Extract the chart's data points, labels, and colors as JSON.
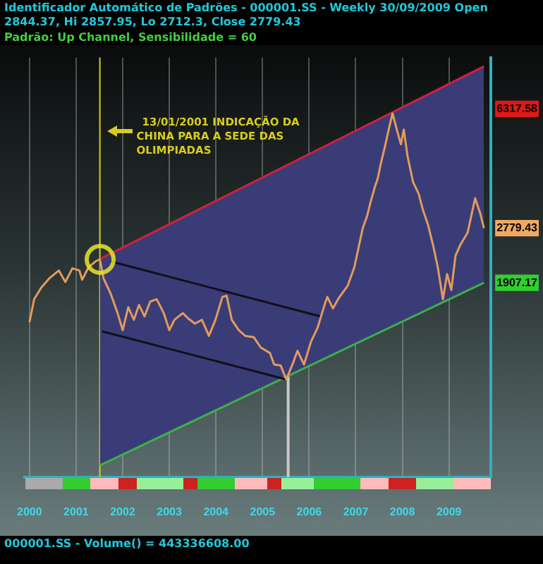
{
  "chart_data": {
    "type": "line",
    "title": "Identificador Automático de Padrões  - 000001.SS - Weekly 30/09/2009 Open 2844.37, Hi 2857.95, Lo 2712.3, Close 2779.43",
    "subtitle": "Padrão: Up Channel, Sensibilidade = 60",
    "annotations": [
      "000001.SS - Volume() = 443336608.00"
    ],
    "log": "y",
    "grid": "x",
    "xlim": [
      1999.9,
      2009.9
    ],
    "xticks": [
      2000,
      2001,
      2002,
      2003,
      2004,
      2005,
      2006,
      2007,
      2008,
      2009
    ],
    "ylim": [
      500,
      9000
    ],
    "yticks": [
      1907.17,
      2779.43,
      6317.58
    ],
    "ref_lines": [
      {
        "axis": "x",
        "value": 2001.51,
        "label": "13/01/2001 INDICAÇÃO DA CHINA PARA A SEDE DAS OLIMPIADAS",
        "color": "#d8cc20"
      },
      {
        "axis": "x",
        "value": 2005.55,
        "color": "#c8c8c8"
      }
    ],
    "series": [
      {
        "type": "area",
        "color": "#3a3c78",
        "x": [
          2001.51,
          2009.75
        ],
        "values": [
          2246,
          8466
        ]
      },
      {
        "type": "line",
        "color": "#3cb04a",
        "x": [
          2001.51,
          2009.75
        ],
        "values": [
          542,
          1907.17
        ]
      },
      {
        "type": "line",
        "color": "#d0203a",
        "x": [
          2001.51,
          2009.75
        ],
        "values": [
          2246,
          8466
        ]
      },
      {
        "type": "line",
        "color": "#101018",
        "x": [
          2001.74,
          2006.24
        ],
        "values": [
          2210,
          1513
        ]
      },
      {
        "type": "line",
        "color": "#101018",
        "x": [
          2001.56,
          2005.51
        ],
        "values": [
          1365,
          980
        ]
      },
      {
        "type": "line",
        "color": "#e39b5b",
        "x": [
          2000.0,
          2000.1,
          2000.25,
          2000.42,
          2000.63,
          2000.77,
          2000.92,
          2001.07,
          2001.13,
          2001.27,
          2001.42,
          2001.51,
          2001.59,
          2001.74,
          2001.89,
          2002.0,
          2002.12,
          2002.24,
          2002.35,
          2002.47,
          2002.59,
          2002.73,
          2002.88,
          2003.0,
          2003.11,
          2003.29,
          2003.41,
          2003.55,
          2003.7,
          2003.85,
          2003.99,
          2004.14,
          2004.23,
          2004.34,
          2004.49,
          2004.63,
          2004.81,
          2004.96,
          2005.16,
          2005.25,
          2005.39,
          2005.51,
          2005.66,
          2005.75,
          2005.89,
          2006.04,
          2006.18,
          2006.33,
          2006.39,
          2006.51,
          2006.62,
          2006.83,
          2006.97,
          2007.06,
          2007.15,
          2007.24,
          2007.32,
          2007.41,
          2007.47,
          2007.53,
          2007.62,
          2007.73,
          2007.79,
          2007.88,
          2007.97,
          2008.03,
          2008.11,
          2008.23,
          2008.35,
          2008.44,
          2008.55,
          2008.67,
          2008.76,
          2008.87,
          2008.96,
          2009.05,
          2009.14,
          2009.25,
          2009.4,
          2009.56,
          2009.67,
          2009.75
        ],
        "values": [
          1454,
          1703,
          1843,
          1963,
          2076,
          1918,
          2107,
          2076,
          1948,
          2124,
          2210,
          2246,
          1963,
          1772,
          1548,
          1376,
          1612,
          1478,
          1637,
          1513,
          1676,
          1703,
          1548,
          1376,
          1478,
          1548,
          1490,
          1440,
          1478,
          1323,
          1478,
          1731,
          1745,
          1478,
          1376,
          1323,
          1312,
          1222,
          1175,
          1086,
          1078,
          980,
          1103,
          1194,
          1086,
          1271,
          1398,
          1637,
          1731,
          1599,
          1703,
          1873,
          2124,
          2430,
          2779,
          3008,
          3333,
          3693,
          3904,
          4292,
          4831,
          5659,
          6124,
          5483,
          4948,
          5483,
          4572,
          3813,
          3522,
          3154,
          2846,
          2430,
          2124,
          1703,
          2026,
          1814,
          2298,
          2487,
          2693,
          3413,
          3080,
          2779.43
        ]
      }
    ]
  }
}
